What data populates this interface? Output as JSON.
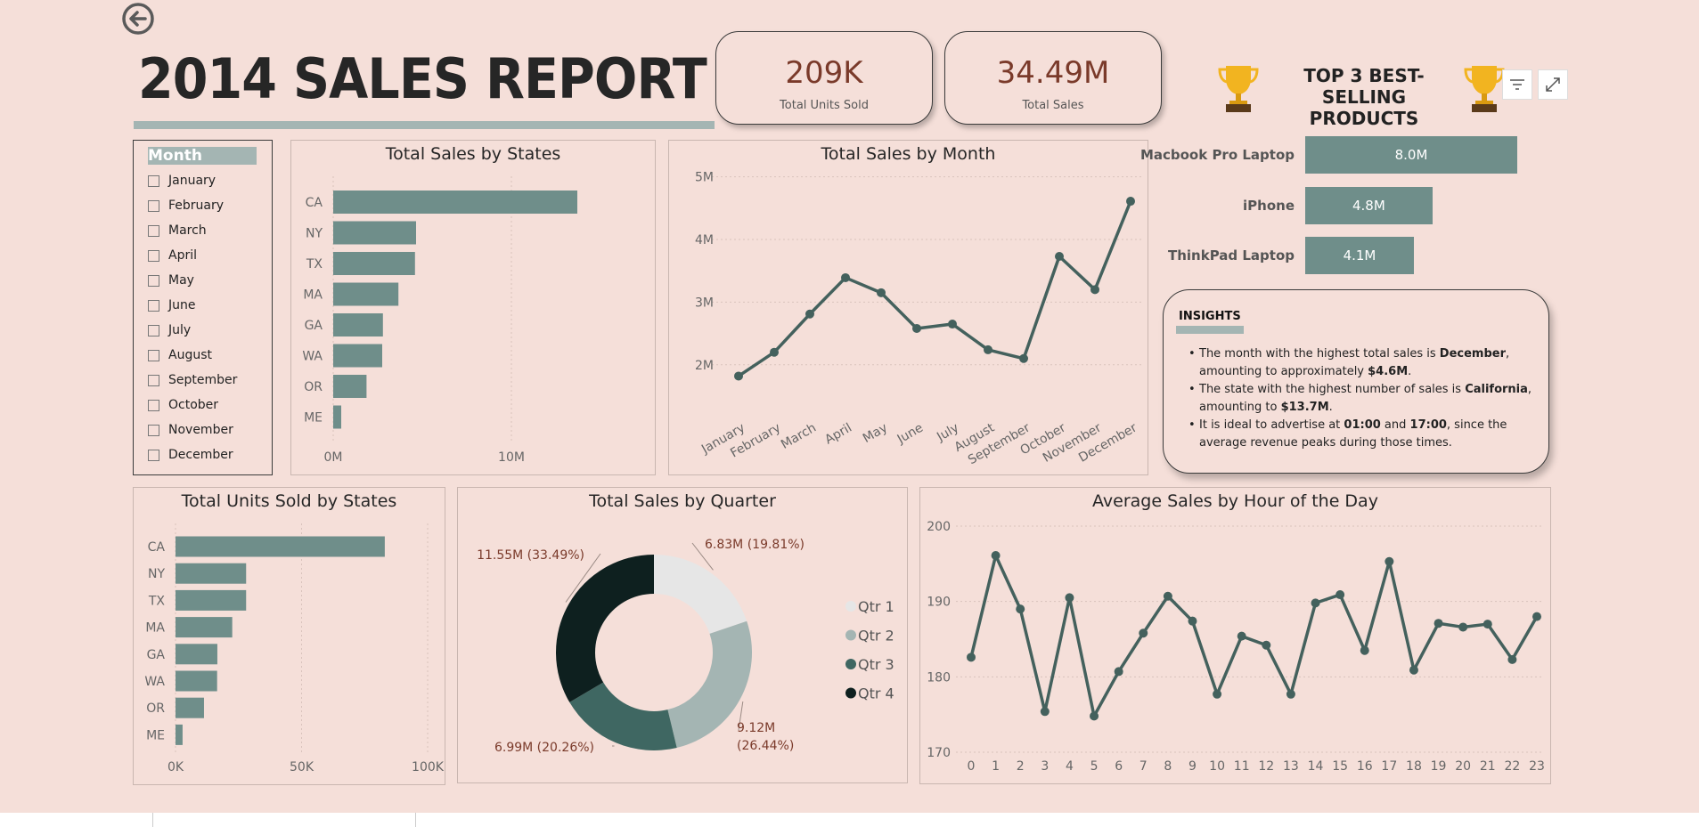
{
  "report": {
    "title": "2014 SALES REPORT",
    "kpis": [
      {
        "value": "209K",
        "label": "Total Units Sold"
      },
      {
        "value": "34.49M",
        "label": "Total Sales"
      }
    ],
    "top3_title_line1": "TOP 3 BEST-SELLING",
    "top3_title_line2": "PRODUCTS",
    "icons": [
      "back-arrow-icon",
      "trophy-icon",
      "filter-icon",
      "focus-mode-icon"
    ]
  },
  "slicer": {
    "header": "Month",
    "items": [
      "January",
      "February",
      "March",
      "April",
      "May",
      "June",
      "July",
      "August",
      "September",
      "October",
      "November",
      "December"
    ]
  },
  "top_products": [
    {
      "name": "Macbook Pro Laptop",
      "value": 8.0,
      "label": "8.0M"
    },
    {
      "name": "iPhone",
      "value": 4.8,
      "label": "4.8M"
    },
    {
      "name": "ThinkPad Laptop",
      "value": 4.1,
      "label": "4.1M"
    }
  ],
  "insights": {
    "title": "INSIGHTS",
    "items": [
      {
        "pre": "The month with the highest total sales is ",
        "b1": "December",
        "mid": ", amounting to approximately ",
        "b2": "$4.6M",
        "post": "."
      },
      {
        "pre": "The state with the highest number of sales is ",
        "b1": "California",
        "mid": ", amounting to ",
        "b2": "$13.7M",
        "post": "."
      },
      {
        "pre": "It is ideal to advertise at ",
        "b1": "01:00",
        "mid": " and ",
        "b2": "17:00",
        "post": ", since the average revenue peaks during those times."
      }
    ]
  },
  "colors": {
    "background": "#f5dfd9",
    "bar": "#6f8e8a",
    "line": "#44615d",
    "q1": "#e6e6e6",
    "q2": "#a4b5b3",
    "q3": "#3f6762",
    "q4": "#0e201f",
    "label": "#7a3a2a"
  },
  "chart_data": [
    {
      "type": "bar",
      "orientation": "horizontal",
      "title": "Total Sales by States",
      "categories": [
        "CA",
        "NY",
        "TX",
        "MA",
        "GA",
        "WA",
        "OR",
        "ME"
      ],
      "values": [
        13.7,
        4.65,
        4.59,
        3.66,
        2.79,
        2.75,
        1.87,
        0.45
      ],
      "xlim": [
        0,
        15.5
      ],
      "xticks": [
        {
          "v": 0,
          "label": "0M"
        },
        {
          "v": 10,
          "label": "10M"
        }
      ],
      "grid": "vertical-dotted"
    },
    {
      "type": "line",
      "title": "Total Sales by Month",
      "x": [
        "January",
        "February",
        "March",
        "April",
        "May",
        "June",
        "July",
        "August",
        "September",
        "October",
        "November",
        "December"
      ],
      "values": [
        1.82,
        2.2,
        2.81,
        3.39,
        3.15,
        2.58,
        2.65,
        2.24,
        2.1,
        3.73,
        3.2,
        4.61
      ],
      "ylim": [
        1.5,
        5.25
      ],
      "yticks": [
        {
          "v": 2,
          "label": "2M"
        },
        {
          "v": 3,
          "label": "3M"
        },
        {
          "v": 4,
          "label": "4M"
        },
        {
          "v": 5,
          "label": "5M"
        }
      ],
      "grid": "horizontal-dotted"
    },
    {
      "type": "bar",
      "orientation": "horizontal",
      "title": "Total Units Sold by States",
      "categories": [
        "CA",
        "NY",
        "TX",
        "MA",
        "GA",
        "WA",
        "OR",
        "ME"
      ],
      "values": [
        83000,
        28000,
        28000,
        22500,
        16600,
        16500,
        11300,
        2800
      ],
      "xlim": [
        0,
        100000
      ],
      "xticks": [
        {
          "v": 0,
          "label": "0K"
        },
        {
          "v": 50000,
          "label": "50K"
        },
        {
          "v": 100000,
          "label": "100K"
        }
      ],
      "grid": "vertical-dotted"
    },
    {
      "type": "pie",
      "donut": true,
      "title": "Total Sales by Quarter",
      "slices": [
        {
          "name": "Qtr 1",
          "value": 6.83,
          "label": "6.83M (19.81%)"
        },
        {
          "name": "Qtr 2",
          "value": 9.12,
          "label_line1": "9.12M",
          "label_line2": "(26.44%)"
        },
        {
          "name": "Qtr 3",
          "value": 6.99,
          "label": "6.99M (20.26%)"
        },
        {
          "name": "Qtr 4",
          "value": 11.55,
          "label": "11.55M (33.49%)"
        }
      ],
      "legend": "right"
    },
    {
      "type": "line",
      "title": "Average Sales by Hour of the Day",
      "x": [
        "0",
        "1",
        "2",
        "3",
        "4",
        "5",
        "6",
        "7",
        "8",
        "9",
        "10",
        "11",
        "12",
        "13",
        "14",
        "15",
        "16",
        "17",
        "18",
        "19",
        "20",
        "21",
        "22",
        "23"
      ],
      "values": [
        182.6,
        196.1,
        189.0,
        175.4,
        190.5,
        174.8,
        180.7,
        185.8,
        190.7,
        187.4,
        177.7,
        185.4,
        184.2,
        177.7,
        189.8,
        190.9,
        183.5,
        195.3,
        180.9,
        187.1,
        186.6,
        187.0,
        182.3,
        188.0
      ],
      "ylim": [
        170,
        200
      ],
      "yticks": [
        {
          "v": 170,
          "label": "170"
        },
        {
          "v": 180,
          "label": "180"
        },
        {
          "v": 190,
          "label": "190"
        },
        {
          "v": 200,
          "label": "200"
        }
      ],
      "grid": "horizontal-dotted"
    }
  ]
}
